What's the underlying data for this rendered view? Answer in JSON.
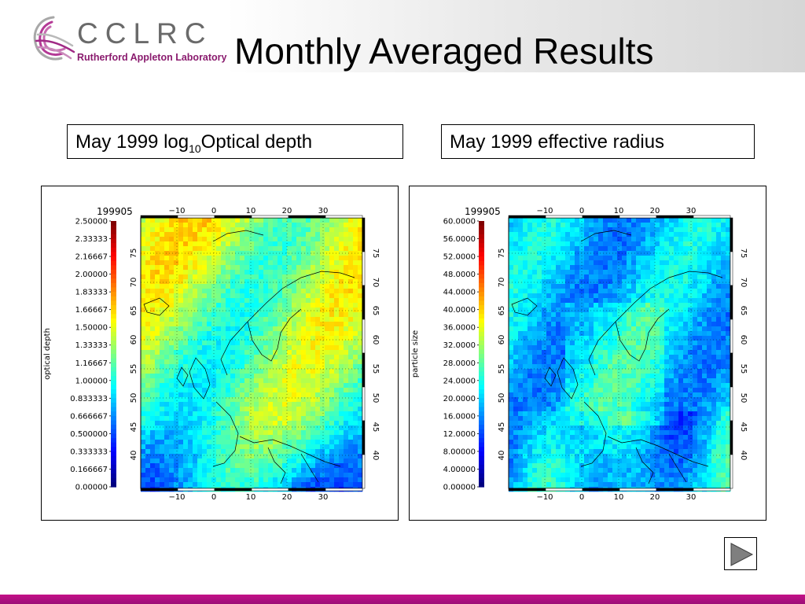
{
  "header": {
    "logo_text": "CCLRC",
    "logo_subtitle": "Rutherford Appleton Laboratory",
    "title": "Monthly Averaged Results"
  },
  "panels": [
    {
      "caption_prefix": "May 1999 log",
      "caption_sub": "10",
      "caption_suffix": "Optical depth",
      "date_code": "199905",
      "axis_label": "optical depth",
      "colorbar_ticks": [
        "2.50000",
        "2.33333",
        "2.16667",
        "2.00000",
        "1.83333",
        "1.66667",
        "1.50000",
        "1.33333",
        "1.16667",
        "1.00000",
        "0.833333",
        "0.666667",
        "0.500000",
        "0.333333",
        "0.166667",
        "0.00000"
      ],
      "lon_ticks": [
        "−10",
        "0",
        "10",
        "20",
        "30"
      ],
      "lat_ticks": [
        "75",
        "70",
        "65",
        "60",
        "55",
        "50",
        "45",
        "40"
      ],
      "palette": "green-dominant"
    },
    {
      "caption_prefix": "May 1999 effective radius",
      "caption_sub": "",
      "caption_suffix": "",
      "date_code": "199905",
      "axis_label": "particle size",
      "colorbar_ticks": [
        "60.0000",
        "56.0000",
        "52.0000",
        "48.0000",
        "44.0000",
        "40.0000",
        "36.0000",
        "32.0000",
        "28.0000",
        "24.0000",
        "20.0000",
        "16.0000",
        "12.0000",
        "8.00000",
        "4.00000",
        "0.00000"
      ],
      "lon_ticks": [
        "−10",
        "0",
        "10",
        "20",
        "30"
      ],
      "lat_ticks": [
        "75",
        "70",
        "65",
        "60",
        "55",
        "50",
        "45",
        "40"
      ],
      "palette": "blue-dominant"
    }
  ],
  "colors": {
    "accent_magenta": "#9b0f78",
    "logo_purple": "#8a1b6e"
  },
  "nav": {
    "next_icon": "play-triangle-icon"
  }
}
